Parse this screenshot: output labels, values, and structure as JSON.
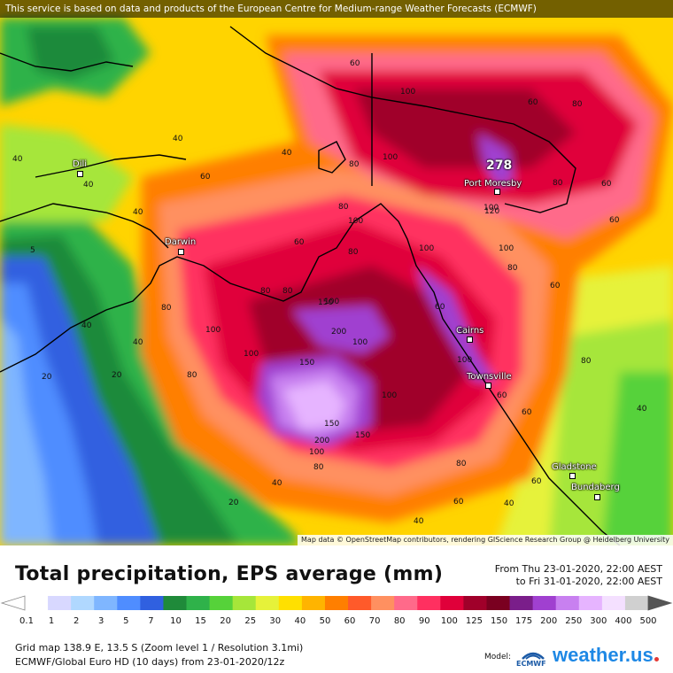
{
  "banner": "This service is based on data and products of the European Centre for Medium-range Weather Forecasts (ECMWF)",
  "attribution": "Map data © OpenStreetMap contributors, rendering GIScience Research Group @ Heidelberg University",
  "cities": [
    {
      "name": "Dili"
    },
    {
      "name": "Darwin"
    },
    {
      "name": "Port Moresby"
    },
    {
      "name": "Cairns"
    },
    {
      "name": "Townsville"
    },
    {
      "name": "Gladstone"
    },
    {
      "name": "Bundaberg"
    }
  ],
  "max_value": "278",
  "contour_labels": [
    "40",
    "60",
    "40",
    "60",
    "80",
    "100",
    "100",
    "80",
    "60",
    "40",
    "60",
    "100",
    "60",
    "80",
    "100",
    "80",
    "100",
    "80",
    "100",
    "120",
    "60",
    "80",
    "40",
    "5",
    "40",
    "60",
    "80",
    "100",
    "80",
    "40",
    "20",
    "80",
    "100",
    "100",
    "80",
    "150",
    "150",
    "200",
    "100",
    "100",
    "60",
    "20",
    "40",
    "150",
    "100",
    "80",
    "200",
    "100",
    "150",
    "60",
    "80",
    "60",
    "40",
    "80",
    "80",
    "60",
    "40",
    "20",
    "40",
    "40",
    "60"
  ],
  "title": "Total precipitation, EPS average (mm)",
  "period_from": "From Thu 23-01-2020, 22:00 AEST",
  "period_to": "to Fri 31-01-2020, 22:00 AEST",
  "legend": {
    "ticks": [
      "0.1",
      "1",
      "2",
      "3",
      "5",
      "7",
      "10",
      "15",
      "20",
      "25",
      "30",
      "40",
      "50",
      "60",
      "70",
      "80",
      "90",
      "100",
      "125",
      "150",
      "175",
      "200",
      "250",
      "300",
      "400",
      "500"
    ],
    "colors": [
      "#ffffff",
      "#d8d8ff",
      "#b0d8ff",
      "#7fb6ff",
      "#4f8dff",
      "#3060e0",
      "#1f8a3a",
      "#2fb24a",
      "#56d23a",
      "#a6e63a",
      "#e6f23a",
      "#ffe000",
      "#ffb400",
      "#ff7f00",
      "#ff5a2a",
      "#ff9060",
      "#ff6a8a",
      "#ff3060",
      "#e0003a",
      "#a0002a",
      "#7a0020",
      "#7a1e8a",
      "#a040d0",
      "#c880f0",
      "#e6b4ff",
      "#f4e0ff",
      "#d0d0d0"
    ]
  },
  "info": {
    "grid": "Grid map 138.9 E, 13.5 S (Zoom level 1 / Resolution 3.1mi)",
    "model_line": "ECMWF/Global Euro HD (10 days)  from  23-01-2020/12z"
  },
  "model_label": "Model:",
  "ecmwf_logo_text": "ECMWF",
  "brand": "weather.us"
}
